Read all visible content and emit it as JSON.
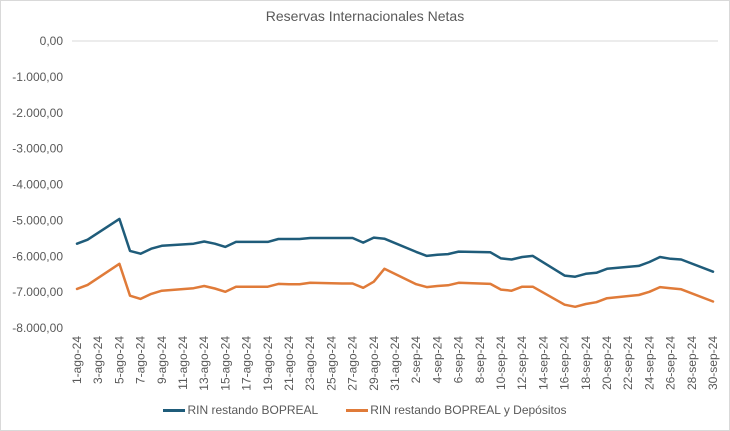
{
  "chart_data": {
    "type": "line",
    "title": "Reservas Internacionales Netas",
    "xlabel": "",
    "ylabel": "",
    "ylim": [
      -8000,
      0
    ],
    "yticks": [
      0,
      -1000,
      -2000,
      -3000,
      -4000,
      -5000,
      -6000,
      -7000,
      -8000
    ],
    "ytick_labels": [
      "0,00",
      "-1.000,00",
      "-2.000,00",
      "-3.000,00",
      "-4.000,00",
      "-5.000,00",
      "-6.000,00",
      "-7.000,00",
      "-8.000,00"
    ],
    "xtick_labels": [
      "1-ago-24",
      "3-ago-24",
      "5-ago-24",
      "7-ago-24",
      "9-ago-24",
      "11-ago-24",
      "13-ago-24",
      "15-ago-24",
      "17-ago-24",
      "19-ago-24",
      "21-ago-24",
      "23-ago-24",
      "25-ago-24",
      "27-ago-24",
      "29-ago-24",
      "31-ago-24",
      "2-sep-24",
      "4-sep-24",
      "6-sep-24",
      "8-sep-24",
      "10-sep-24",
      "12-sep-24",
      "14-sep-24",
      "16-sep-24",
      "18-sep-24",
      "20-sep-24",
      "22-sep-24",
      "24-sep-24",
      "26-sep-24",
      "28-sep-24",
      "30-sep-24"
    ],
    "x_day_index_range": [
      0,
      60
    ],
    "x": [
      0,
      1,
      4,
      5,
      6,
      7,
      8,
      11,
      12,
      13,
      14,
      15,
      18,
      19,
      20,
      21,
      22,
      25,
      26,
      27,
      28,
      29,
      32,
      33,
      34,
      35,
      36,
      39,
      40,
      41,
      42,
      43,
      46,
      47,
      48,
      49,
      50,
      53,
      54,
      55,
      56,
      57,
      60
    ],
    "x_dates": [
      "1-ago-24",
      "2-ago-24",
      "5-ago-24",
      "6-ago-24",
      "7-ago-24",
      "8-ago-24",
      "9-ago-24",
      "12-ago-24",
      "13-ago-24",
      "14-ago-24",
      "15-ago-24",
      "16-ago-24",
      "19-ago-24",
      "20-ago-24",
      "21-ago-24",
      "22-ago-24",
      "23-ago-24",
      "26-ago-24",
      "27-ago-24",
      "28-ago-24",
      "29-ago-24",
      "30-ago-24",
      "2-sep-24",
      "3-sep-24",
      "4-sep-24",
      "5-sep-24",
      "6-sep-24",
      "9-sep-24",
      "10-sep-24",
      "11-sep-24",
      "12-sep-24",
      "13-sep-24",
      "16-sep-24",
      "17-sep-24",
      "18-sep-24",
      "19-sep-24",
      "20-sep-24",
      "23-sep-24",
      "24-sep-24",
      "25-sep-24",
      "26-sep-24",
      "27-sep-24",
      "30-sep-24"
    ],
    "series": [
      {
        "name": "RIN restando BOPREAL",
        "color": "#1f5c7a",
        "values": [
          -5650,
          -5540,
          -4960,
          -5850,
          -5930,
          -5790,
          -5710,
          -5650,
          -5590,
          -5650,
          -5740,
          -5600,
          -5600,
          -5520,
          -5520,
          -5520,
          -5490,
          -5490,
          -5490,
          -5620,
          -5480,
          -5510,
          -5880,
          -5990,
          -5960,
          -5940,
          -5870,
          -5890,
          -6060,
          -6090,
          -6020,
          -5990,
          -6540,
          -6570,
          -6490,
          -6460,
          -6350,
          -6270,
          -6160,
          -6020,
          -6070,
          -6090,
          -6430
        ]
      },
      {
        "name": "RIN restando BOPREAL y Depósitos",
        "color": "#e07b39",
        "values": [
          -6910,
          -6800,
          -6210,
          -7100,
          -7190,
          -7050,
          -6960,
          -6890,
          -6830,
          -6900,
          -6990,
          -6850,
          -6850,
          -6770,
          -6780,
          -6780,
          -6740,
          -6760,
          -6760,
          -6880,
          -6710,
          -6350,
          -6780,
          -6860,
          -6830,
          -6810,
          -6740,
          -6770,
          -6930,
          -6960,
          -6850,
          -6850,
          -7350,
          -7410,
          -7330,
          -7280,
          -7170,
          -7080,
          -6990,
          -6860,
          -6890,
          -6920,
          -7260
        ]
      }
    ],
    "grid": "zero-line only",
    "legend_position": "bottom"
  }
}
